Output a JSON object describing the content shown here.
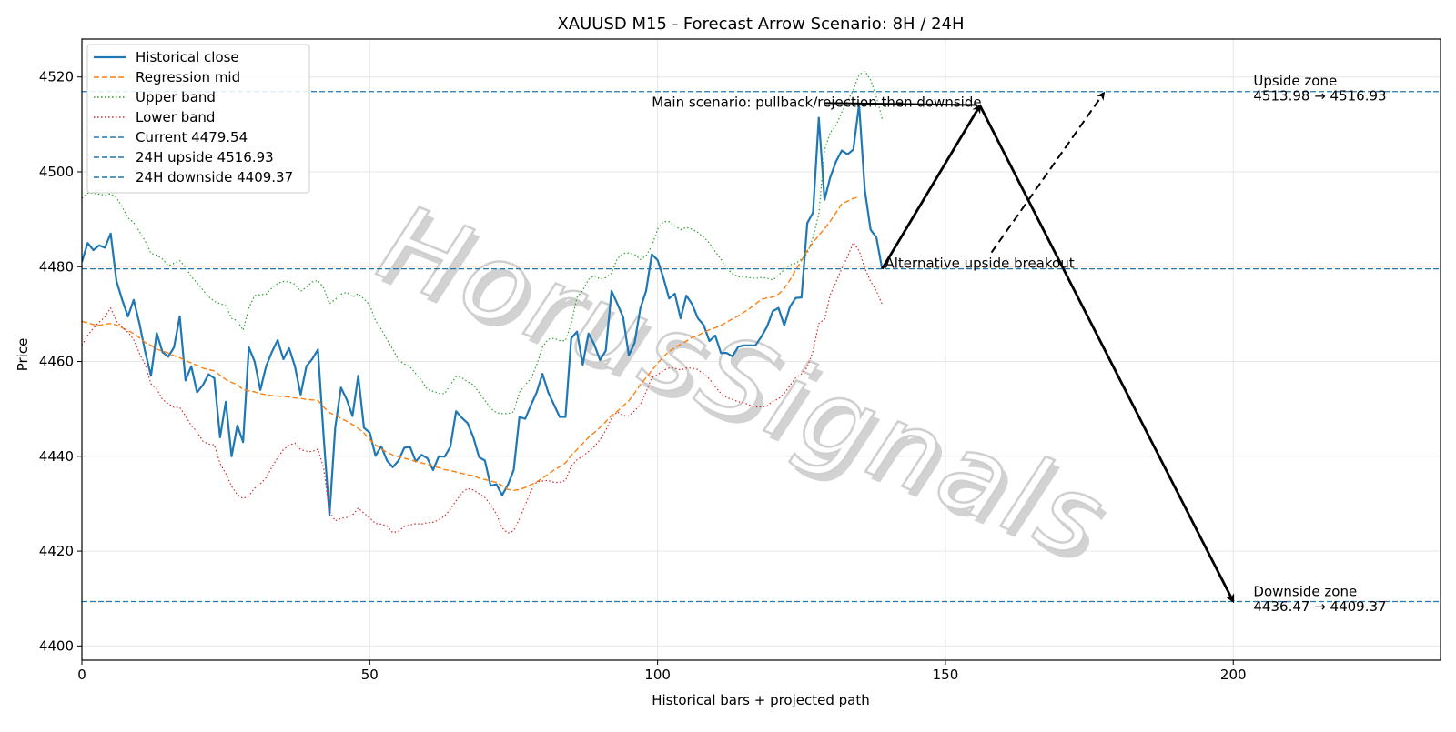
{
  "chart_data": {
    "type": "line",
    "title": "XAUUSD M15 - Forecast Arrow Scenario: 8H / 24H",
    "xlabel": "Historical bars + projected path",
    "ylabel": "Price",
    "xlim": [
      0,
      236
    ],
    "ylim": [
      4397,
      4528
    ],
    "xticks": [
      0,
      50,
      100,
      150,
      200
    ],
    "yticks": [
      4400,
      4420,
      4440,
      4460,
      4480,
      4500,
      4520
    ],
    "grid": true,
    "legend_position": "top-left",
    "watermark": "HorusSignals",
    "colors": {
      "close": "#1f77b4",
      "mid": "#ff7f0e",
      "upper": "#2ca02c",
      "lower": "#d62728",
      "hline": "#1f77b4",
      "arrow": "#000000"
    },
    "series": [
      {
        "name": "Historical close",
        "style": "solid",
        "values": [
          4481,
          4485,
          4483.5,
          4484.5,
          4484,
          4487,
          4477,
          4473,
          4469.5,
          4473,
          4468,
          4462,
          4457,
          4466,
          4462,
          4461,
          4463,
          4469.5,
          4456,
          4459,
          4453.5,
          4455,
          4457.3,
          4456.5,
          4444,
          4451.5,
          4440,
          4446.5,
          4443,
          4463,
          4460,
          4454,
          4459,
          4462,
          4464.5,
          4460.5,
          4462.8,
          4459,
          4453,
          4459,
          4460.5,
          4462.5,
          4444,
          4427.5,
          4446,
          4454.5,
          4452,
          4448.5,
          4457,
          4446,
          4445,
          4440.1,
          4442.1,
          4439.1,
          4437.7,
          4439.1,
          4441.8,
          4442,
          4438.9,
          4440.3,
          4439.6,
          4437.1,
          4440,
          4439.9,
          4442,
          4449.5,
          4448.1,
          4447,
          4444,
          4439.8,
          4439.1,
          4433.8,
          4434.1,
          4431.8,
          4434,
          4437.1,
          4448.3,
          4447.9,
          4450.8,
          4453.5,
          4457.4,
          4453.5,
          4450.9,
          4448.3,
          4448.3,
          4464.9,
          4466.3,
          4459.3,
          4465.9,
          4463.6,
          4460.3,
          4462.3,
          4474.9,
          4472.2,
          4469.4,
          4461.3,
          4463.9,
          4471.2,
          4474.9,
          4482.6,
          4481.4,
          4477.7,
          4473.3,
          4474.3,
          4469.1,
          4473.9,
          4472.1,
          4469.1,
          4467.7,
          4464.3,
          4465.5,
          4461.8,
          4461.8,
          4461.1,
          4463.1,
          4463.4,
          4463.4,
          4463.4,
          4465.2,
          4467.3,
          4470.6,
          4471.3,
          4467.6,
          4471.6,
          4473.4,
          4473.5,
          4489.2,
          4491.4,
          4511.4,
          4494.1,
          4498.9,
          4502.2,
          4504.5,
          4503.7,
          4504.7,
          4514.2,
          4496.1,
          4487.8,
          4486.2,
          4479.54
        ]
      },
      {
        "name": "Regression mid",
        "style": "dashed",
        "values": [
          4468.5,
          4468.1,
          4467.8,
          4467.6,
          4467.9,
          4468,
          4467.7,
          4467.1,
          4466.5,
          4465.9,
          4465,
          4464,
          4463.4,
          4462.6,
          4462.2,
          4461.8,
          4461.2,
          4460.8,
          4460.2,
          4459.7,
          4459.2,
          4458.6,
          4458.3,
          4458,
          4457.1,
          4456.2,
          4455.6,
          4455.1,
          4454.1,
          4453.8,
          4453.6,
          4453.2,
          4453,
          4452.8,
          4452.7,
          4452.6,
          4452.5,
          4452.3,
          4452.2,
          4452,
          4451.9,
          4451.8,
          4450.4,
          4449.2,
          4448.7,
          4448,
          4447.4,
          4446.7,
          4445.9,
          4444.9,
          4443.5,
          4442.4,
          4441.6,
          4440.8,
          4440.3,
          4439.9,
          4439.6,
          4439.3,
          4438.9,
          4438.6,
          4438.3,
          4437.9,
          4437.6,
          4437.2,
          4437,
          4436.7,
          4436.4,
          4436.1,
          4435.9,
          4435.4,
          4435.1,
          4434.8,
          4434.5,
          4433.8,
          4433,
          4432.8,
          4433,
          4433.4,
          4434,
          4434.6,
          4435.4,
          4436.2,
          4437.1,
          4437.8,
          4438.6,
          4440.2,
          4441.4,
          4442.7,
          4444,
          4445,
          4446.1,
          4447.3,
          4448.6,
          4449.5,
          4450.6,
          4451.7,
          4453.3,
          4455.1,
          4456.6,
          4458.1,
          4459.6,
          4461,
          4462.1,
          4462.9,
          4463.6,
          4464.3,
          4465.1,
          4465.5,
          4466.1,
          4466.7,
          4467.1,
          4467.6,
          4468.3,
          4469,
          4469.6,
          4470.4,
          4471.2,
          4472.1,
          4473.1,
          4473.4,
          4473.6,
          4474.2,
          4475.4,
          4477.2,
          4479.3,
          4481.3,
          4483.4,
          4485.1,
          4486.6,
          4488,
          4489.6,
          4491.4,
          4493.3,
          4493.8,
          4494.4,
          4494.7
        ]
      },
      {
        "name": "Upper band",
        "style": "dotted",
        "values": [
          4494.4,
          4495.5,
          4495.5,
          4495.3,
          4495.1,
          4495.4,
          4494.6,
          4492.6,
          4490.3,
          4489.3,
          4487.4,
          4485.4,
          4482.8,
          4482.4,
          4481.6,
          4480.2,
          4480.7,
          4481.3,
          4479.9,
          4477.9,
          4476.6,
          4475.1,
          4473.7,
          4472.7,
          4472.2,
          4471.8,
          4469.1,
          4468.6,
          4466.6,
          4471.3,
          4473.9,
          4474.1,
          4474.2,
          4475.5,
          4476.5,
          4476.9,
          4476.8,
          4476.3,
          4474.8,
          4475.7,
          4476.8,
          4477.1,
          4475.5,
          4472.2,
          4473.1,
          4474.2,
          4474.6,
          4473.6,
          4474.3,
          4473.2,
          4471.9,
          4468.6,
          4466.8,
          4464.6,
          4462.6,
          4460.3,
          4459.5,
          4458.9,
          4457.4,
          4456,
          4454.1,
          4453.7,
          4453.3,
          4453.2,
          4455.1,
          4456.8,
          4456.6,
          4455.7,
          4455.1,
          4453.4,
          4451.8,
          4450.1,
          4449.2,
          4449,
          4449,
          4449.4,
          4453.5,
          4455.1,
          4456.3,
          4459.3,
          4463,
          4464.7,
          4464.9,
          4464.4,
          4464.4,
          4468,
          4473.5,
          4475,
          4477.3,
          4478.1,
          4477.4,
          4477.7,
          4478.6,
          4481.7,
          4482.8,
          4482.9,
          4482.6,
          4481.5,
          4482.3,
          4484.4,
          4487.9,
          4489.5,
          4489.5,
          4488.6,
          4487.8,
          4488.3,
          4487.9,
          4487.2,
          4486.2,
          4485,
          4483.2,
          4481.6,
          4479.7,
          4478.5,
          4477.9,
          4477.8,
          4477.7,
          4477.5,
          4477.7,
          4477.6,
          4477.2,
          4478.2,
          4479.4,
          4480.4,
          4480.7,
          4481.6,
          4482.8,
          4486.2,
          4491.1,
          4504.6,
          4508.3,
          4509.8,
          4512.6,
          4514.9,
          4517.3,
          4520.5,
          4521.2,
          4519.4,
          4515.8,
          4511.2
        ]
      },
      {
        "name": "Lower band",
        "style": "dotted",
        "values": [
          4463.4,
          4465.5,
          4467,
          4468.3,
          4469.4,
          4471.3,
          4468.5,
          4467.2,
          4466.2,
          4464.6,
          4461.7,
          4459.3,
          4455.3,
          4454.2,
          4452,
          4451.1,
          4450.3,
          4450.3,
          4448.5,
          4446.5,
          4445.2,
          4443.2,
          4442.6,
          4442.4,
          4438.5,
          4436.3,
          4433.7,
          4431.9,
          4431.1,
          4431.6,
          4433.3,
          4434.2,
          4435.5,
          4437.7,
          4439.7,
          4441.4,
          4442.3,
          4442.8,
          4441.4,
          4441.1,
          4441,
          4441.5,
          4437.5,
          4428.4,
          4426.4,
          4426.9,
          4427.1,
          4427.6,
          4429.1,
          4428,
          4427,
          4425.8,
          4425.7,
          4425.3,
          4423.9,
          4424.2,
          4425.2,
          4425.5,
          4425.8,
          4425.7,
          4426,
          4426.1,
          4426.6,
          4427.4,
          4428.8,
          4430.6,
          4432.3,
          4433.2,
          4432.9,
          4432.1,
          4431.3,
          4429.8,
          4427.8,
          4424.9,
          4423.8,
          4424.3,
          4426.8,
          4429.7,
          4432.7,
          4434.6,
          4434.8,
          4434.9,
          4434.5,
          4434.5,
          4434.9,
          4437.9,
          4439.3,
          4440,
          4441,
          4442,
          4443.5,
          4445.5,
          4448,
          4449.4,
          4448.6,
          4448.5,
          4449.6,
          4450.9,
          4453.6,
          4456.6,
          4457.2,
          4458.1,
          4458.6,
          4458.6,
          4458.2,
          4458.6,
          4458.6,
          4458.3,
          4457.4,
          4456.3,
          4454.7,
          4453.3,
          4452.4,
          4452,
          4451.5,
          4451.3,
          4450.8,
          4450.4,
          4450.4,
          4450.6,
          4451.6,
          4452.1,
          4453.3,
          4454.9,
          4456.6,
          4457.4,
          4458.8,
          4462.2,
          4468,
          4468.9,
          4474.1,
          4476.8,
          4479.6,
          4482.1,
          4485.1,
          4483.4,
          4479.7,
          4476.9,
          4474.9,
          4472.1
        ]
      }
    ],
    "hlines": [
      {
        "name": "Current 4479.54",
        "y": 4479.54,
        "style": "dashed"
      },
      {
        "name": "24H upside 4516.93",
        "y": 4516.93,
        "style": "dashed"
      },
      {
        "name": "24H downside 4409.37",
        "y": 4409.37,
        "style": "dashed"
      }
    ],
    "arrows": [
      {
        "from": [
          139,
          4479.54
        ],
        "to": [
          156,
          4513.98
        ],
        "style": "solid"
      },
      {
        "from": [
          156,
          4513.98
        ],
        "to": [
          200,
          4409.37
        ],
        "style": "solid"
      },
      {
        "from": [
          158,
          4483
        ],
        "to": [
          177.5,
          4516.6
        ],
        "style": "dashed"
      }
    ],
    "scenario_segment": {
      "from": [
        129,
        4514.5
      ],
      "to": [
        155.5,
        4514.1
      ]
    },
    "annotations": {
      "main_scenario": {
        "text": "Main scenario: pullback/rejection then downside",
        "x": 99,
        "y": 4513.7
      },
      "alt_scenario": {
        "text": "Alternative upside breakout",
        "x": 139.5,
        "y": 4479.8
      },
      "upside_zone_title": {
        "text": "Upside zone",
        "x": 203.5,
        "y": 4518.2
      },
      "upside_zone_range": {
        "text": "4513.98 → 4516.93",
        "x": 203.5,
        "y": 4515.1
      },
      "downside_zone_title": {
        "text": "Downside zone",
        "x": 203.5,
        "y": 4410.5
      },
      "downside_zone_range": {
        "text": "4436.47 → 4409.37",
        "x": 203.5,
        "y": 4407.4
      }
    }
  }
}
